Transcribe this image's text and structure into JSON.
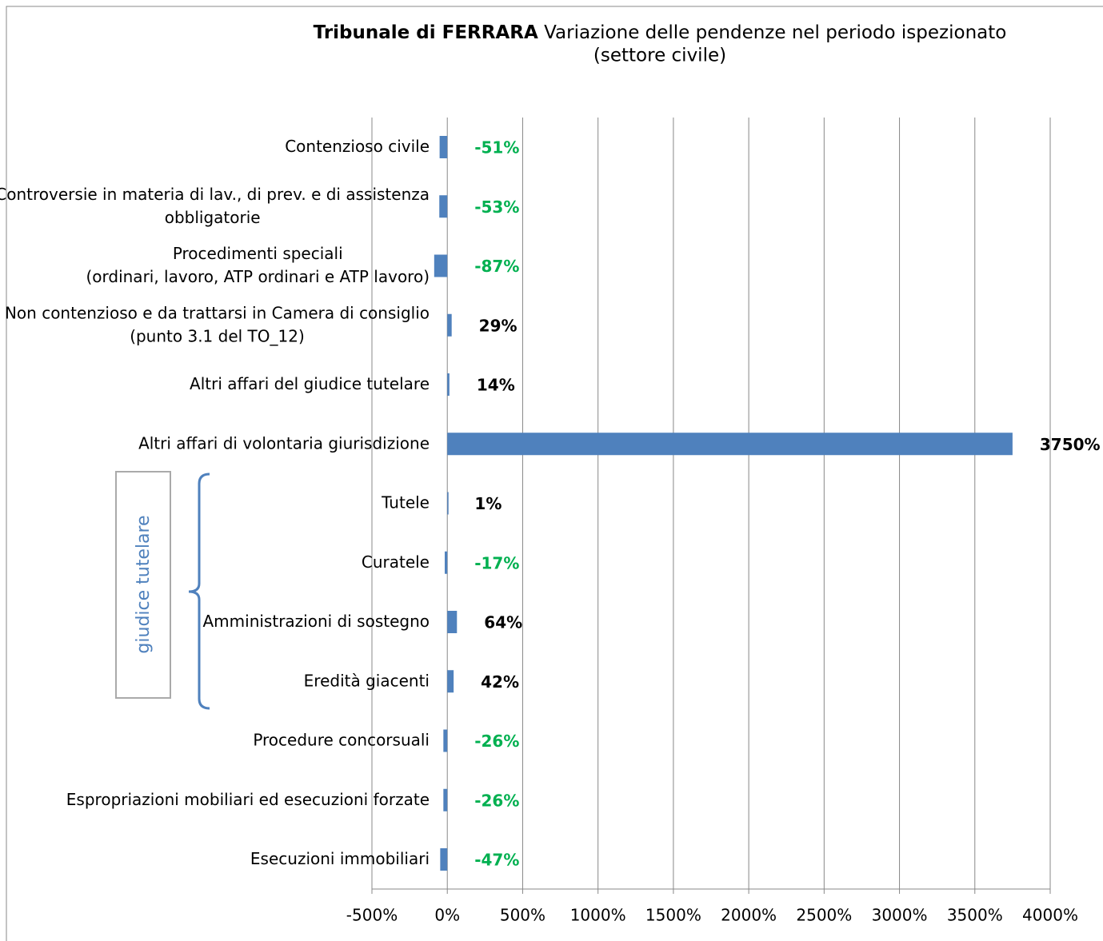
{
  "chart_data": {
    "type": "hbar",
    "title_bold": "Tribunale di FERRARA",
    "title": "Variazione delle pendenze nel periodo ispezionato",
    "subtitle": "(settore civile)",
    "categories": [
      "Contenzioso civile",
      "Controversie in materia di lav., di prev. e di assistenza\nobbligatorie",
      "Procedimenti speciali\n(ordinari, lavoro, ATP ordinari e ATP lavoro)",
      "Non contenzioso e da trattarsi in Camera di consiglio\n(punto 3.1 del TO_12)",
      "Altri affari del giudice tutelare",
      "Altri affari di volontaria giurisdizione",
      "Tutele",
      "Curatele",
      "Amministrazioni di sostegno",
      "Eredità giacenti",
      "Procedure concorsuali",
      "Espropriazioni mobiliari ed esecuzioni forzate",
      "Esecuzioni immobiliari"
    ],
    "values": [
      -51,
      -53,
      -87,
      29,
      14,
      3750,
      1,
      -17,
      64,
      42,
      -26,
      -26,
      -47
    ],
    "value_labels": [
      "-51%",
      "-53%",
      "-87%",
      "29%",
      "14%",
      "3750%",
      "1%",
      "-17%",
      "64%",
      "42%",
      "-26%",
      "-26%",
      "-47%"
    ],
    "color": "#4f81bd",
    "label_color": "#000000",
    "negative_label_color": "#00b050",
    "xlim": [
      -500,
      4000
    ],
    "xticks": [
      {
        "value": -500,
        "label": "-500%"
      },
      {
        "value": 0,
        "label": "0%"
      },
      {
        "value": 500,
        "label": "500%"
      },
      {
        "value": 1000,
        "label": "1000%"
      },
      {
        "value": 1500,
        "label": "1500%"
      },
      {
        "value": 2000,
        "label": "2000%"
      },
      {
        "value": 2500,
        "label": "2500%"
      },
      {
        "value": 3000,
        "label": "3000%"
      },
      {
        "value": 3500,
        "label": "3500%"
      },
      {
        "value": 4000,
        "label": "4000%"
      }
    ],
    "grid": true,
    "annotation": "giudice tutelare"
  }
}
